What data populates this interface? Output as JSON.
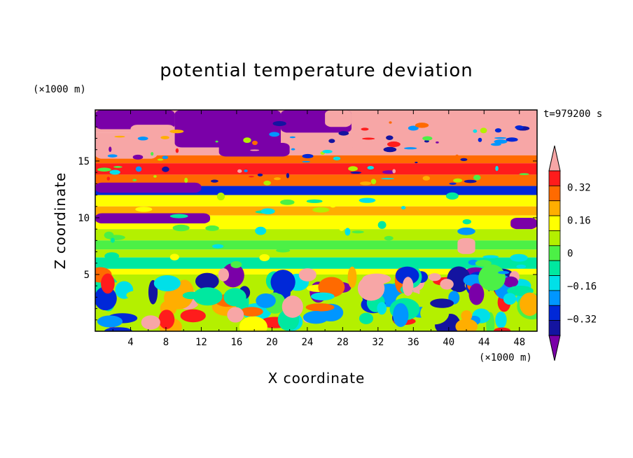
{
  "chart_data": {
    "type": "heatmap",
    "title": "potential temperature deviation",
    "xlabel": "X coordinate",
    "ylabel": "Z coordinate",
    "x_units": "(×1000 m)",
    "y_units": "(×1000 m)",
    "timestamp": "t=979200 s",
    "xlim": [
      0,
      50
    ],
    "ylim": [
      0,
      19.5
    ],
    "xticks": [
      "4",
      "8",
      "12",
      "16",
      "20",
      "24",
      "28",
      "32",
      "36",
      "40",
      "44",
      "48"
    ],
    "yticks": [
      "5",
      "10",
      "15"
    ],
    "colorbar": {
      "labels": [
        "0.32",
        "0.16",
        "0",
        "-0.16",
        "-0.32"
      ],
      "levels": [
        0.32,
        0.16,
        0,
        -0.16,
        -0.32
      ],
      "colors": [
        "#f7a6a6",
        "#ff1c1c",
        "#ff6a00",
        "#ffae00",
        "#ffff00",
        "#b4f000",
        "#4cf046",
        "#00e8a0",
        "#00e0e8",
        "#0096ff",
        "#0028d8",
        "#1414a0",
        "#7a00a8"
      ]
    },
    "field_bands": [
      {
        "z": [
          17.5,
          19.5
        ],
        "value": 0.4
      },
      {
        "z": [
          15.5,
          17.5
        ],
        "value": 0.45
      },
      {
        "z": [
          14.8,
          15.5
        ],
        "value": 0.3
      },
      {
        "z": [
          13.8,
          14.8
        ],
        "value": 0.35
      },
      {
        "z": [
          12.8,
          13.8
        ],
        "value": 0.25
      },
      {
        "z": [
          12.0,
          12.8
        ],
        "value": -0.35
      },
      {
        "z": [
          11.0,
          12.0
        ],
        "value": 0.1
      },
      {
        "z": [
          10.2,
          11.0
        ],
        "value": 0.18
      },
      {
        "z": [
          9.0,
          10.2
        ],
        "value": 0.08
      },
      {
        "z": [
          8.0,
          9.0
        ],
        "value": 0.02
      },
      {
        "z": [
          7.2,
          8.0
        ],
        "value": -0.08
      },
      {
        "z": [
          6.5,
          7.2
        ],
        "value": 0.05
      },
      {
        "z": [
          5.5,
          6.5
        ],
        "value": -0.1
      },
      {
        "z": [
          5.0,
          5.5
        ],
        "value": 0.1
      },
      {
        "z": [
          0,
          5.0
        ],
        "value": 0.0
      }
    ]
  }
}
